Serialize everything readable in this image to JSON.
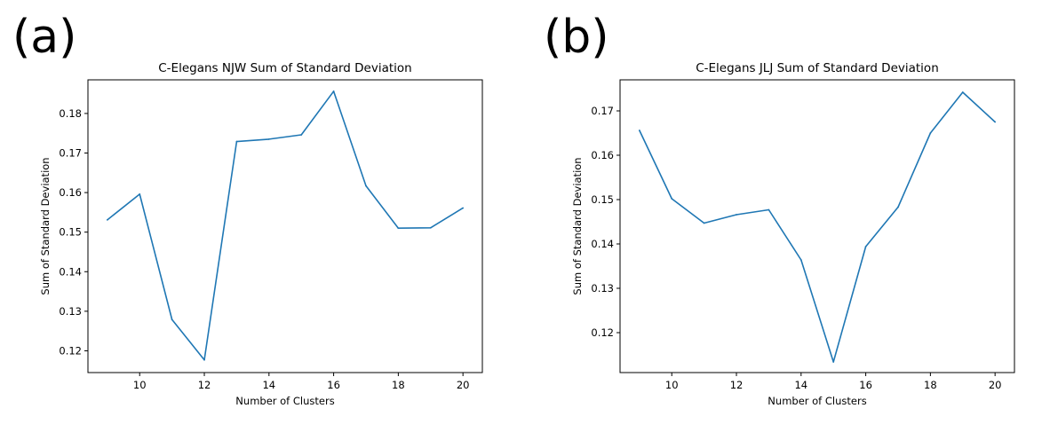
{
  "panels": [
    {
      "letter": "(a)"
    },
    {
      "letter": "(b)"
    }
  ],
  "chart_data": [
    {
      "type": "line",
      "title": "C-Elegans NJW Sum of Standard Deviation",
      "xlabel": "Number of Clusters",
      "ylabel": "Sum of Standard Deviation",
      "xlim": [
        8.4,
        20.6
      ],
      "ylim": [
        0.1145,
        0.1885
      ],
      "xticks": [
        10,
        12,
        14,
        16,
        18,
        20
      ],
      "yticks": [
        0.12,
        0.13,
        0.14,
        0.15,
        0.16,
        0.17,
        0.18
      ],
      "xtick_labels": [
        "10",
        "12",
        "14",
        "16",
        "18",
        "20"
      ],
      "ytick_labels": [
        "0.12",
        "0.13",
        "0.14",
        "0.15",
        "0.16",
        "0.17",
        "0.18"
      ],
      "grid": false,
      "color": "#1f77b4",
      "x": [
        9,
        10,
        11,
        12,
        13,
        14,
        15,
        16,
        17,
        18,
        19,
        20
      ],
      "y": [
        0.1531,
        0.1596,
        0.1279,
        0.1177,
        0.1729,
        0.1735,
        0.1746,
        0.1856,
        0.1617,
        0.151,
        0.1511,
        0.1561
      ]
    },
    {
      "type": "line",
      "title": "C-Elegans JLJ Sum of Standard Deviation",
      "xlabel": "Number of Clusters",
      "ylabel": "Sum of Standard Deviation",
      "xlim": [
        8.4,
        20.6
      ],
      "ylim": [
        0.111,
        0.177
      ],
      "xticks": [
        10,
        12,
        14,
        16,
        18,
        20
      ],
      "yticks": [
        0.12,
        0.13,
        0.14,
        0.15,
        0.16,
        0.17
      ],
      "xtick_labels": [
        "10",
        "12",
        "14",
        "16",
        "18",
        "20"
      ],
      "ytick_labels": [
        "0.12",
        "0.13",
        "0.14",
        "0.15",
        "0.16",
        "0.17"
      ],
      "grid": false,
      "color": "#1f77b4",
      "x": [
        9,
        10,
        11,
        12,
        13,
        14,
        15,
        16,
        17,
        18,
        19,
        20
      ],
      "y": [
        0.1656,
        0.1502,
        0.1447,
        0.1466,
        0.1477,
        0.1364,
        0.1134,
        0.1394,
        0.1483,
        0.165,
        0.1742,
        0.1675
      ]
    }
  ]
}
